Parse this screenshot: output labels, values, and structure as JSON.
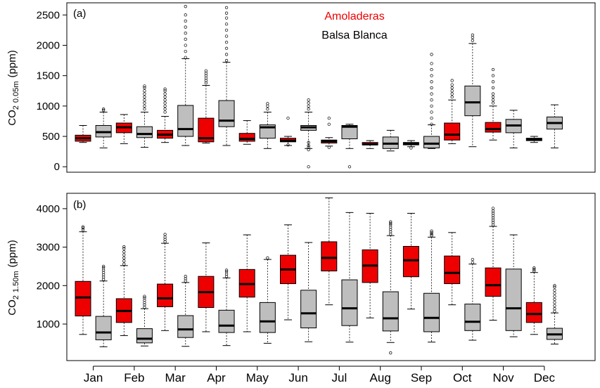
{
  "colors": {
    "amoladeras": "#ee0000",
    "balsa_blanca": "#bebebe",
    "axis": "#000000"
  },
  "legend": {
    "amoladeras": "Amoladeras",
    "balsa_blanca": "Balsa Blanca"
  },
  "chart_data": [
    {
      "type": "boxplot",
      "panel_label": "(a)",
      "ylabel": {
        "main": "CO",
        "sub2": "2",
        "depth": "0.05m",
        "unit": "(ppm)"
      },
      "ylim": [
        -90,
        2700
      ],
      "yticks": [
        0,
        500,
        1000,
        1500,
        2000,
        2500
      ],
      "categories": [
        "Jan",
        "Feb",
        "Mar",
        "Apr",
        "May",
        "Jun",
        "Jul",
        "Aug",
        "Sep",
        "Oct",
        "Nov",
        "Dec"
      ],
      "legend_position": "top-center",
      "series": [
        {
          "name": "Amoladeras",
          "boxes": [
            {
              "month": "Jan",
              "min": 400,
              "q1": 420,
              "median": 470,
              "q3": 520,
              "max": 680,
              "outliers": []
            },
            {
              "month": "Feb",
              "min": 380,
              "q1": 560,
              "median": 650,
              "q3": 720,
              "max": 860,
              "outliers": []
            },
            {
              "month": "Mar",
              "min": 400,
              "q1": 470,
              "median": 530,
              "q3": 600,
              "max": 830,
              "outliers": [
                900,
                950,
                1000,
                1050,
                1100,
                1150,
                1200,
                1250,
                1280
              ]
            },
            {
              "month": "Apr",
              "min": 390,
              "q1": 410,
              "median": 470,
              "q3": 800,
              "max": 1340,
              "outliers": [
                1380,
                1420,
                1460,
                1500,
                1540,
                1580
              ]
            },
            {
              "month": "May",
              "min": 370,
              "q1": 420,
              "median": 460,
              "q3": 550,
              "max": 760,
              "outliers": []
            },
            {
              "month": "Jun",
              "min": 350,
              "q1": 410,
              "median": 430,
              "q3": 470,
              "max": 500,
              "outliers": [
                360,
                800
              ]
            },
            {
              "month": "Jul",
              "min": 340,
              "q1": 390,
              "median": 420,
              "q3": 440,
              "max": 480,
              "outliers": [
                320,
                700,
                800
              ]
            },
            {
              "month": "Aug",
              "min": 300,
              "q1": 360,
              "median": 370,
              "q3": 400,
              "max": 430,
              "outliers": []
            },
            {
              "month": "Sep",
              "min": 330,
              "q1": 360,
              "median": 380,
              "q3": 400,
              "max": 430,
              "outliers": [
                310
              ]
            },
            {
              "month": "Oct",
              "min": 380,
              "q1": 440,
              "median": 530,
              "q3": 720,
              "max": 1100,
              "outliers": [
                1150,
                1200,
                1250,
                1300,
                1350,
                1420
              ]
            },
            {
              "month": "Nov",
              "min": 440,
              "q1": 570,
              "median": 620,
              "q3": 730,
              "max": 1000,
              "outliers": [
                1050,
                1100,
                1150,
                1200,
                1300,
                1400,
                1500,
                1600
              ]
            },
            {
              "month": "Dec",
              "min": 400,
              "q1": 430,
              "median": 450,
              "q3": 470,
              "max": 500,
              "outliers": []
            }
          ]
        },
        {
          "name": "Balsa Blanca",
          "boxes": [
            {
              "month": "Jan",
              "min": 310,
              "q1": 490,
              "median": 570,
              "q3": 680,
              "max": 900,
              "outliers": [
                930,
                950
              ]
            },
            {
              "month": "Feb",
              "min": 320,
              "q1": 480,
              "median": 540,
              "q3": 660,
              "max": 900,
              "outliers": [
                950,
                1000,
                1050,
                1100,
                1150,
                1200,
                1250,
                1300,
                1330
              ]
            },
            {
              "month": "Mar",
              "min": 350,
              "q1": 500,
              "median": 620,
              "q3": 1010,
              "max": 1780,
              "outliers": [
                1800,
                1900,
                2000,
                2100,
                2200,
                2300,
                2400,
                2500,
                2640
              ]
            },
            {
              "month": "Apr",
              "min": 350,
              "q1": 660,
              "median": 760,
              "q3": 1090,
              "max": 1720,
              "outliers": [
                1750,
                1850,
                1950,
                2050,
                2150,
                2250,
                2350,
                2450,
                2530,
                2620
              ]
            },
            {
              "month": "May",
              "min": 300,
              "q1": 470,
              "median": 650,
              "q3": 690,
              "max": 900,
              "outliers": [
                950,
                1000,
                1040
              ]
            },
            {
              "month": "Jun",
              "min": 300,
              "q1": 600,
              "median": 650,
              "q3": 680,
              "max": 900,
              "outliers": [
                280,
                320,
                350,
                400,
                950,
                1000,
                1050,
                1100,
                0
              ]
            },
            {
              "month": "Jul",
              "min": 300,
              "q1": 460,
              "median": 660,
              "q3": 680,
              "max": 700,
              "outliers": [
                0
              ]
            },
            {
              "month": "Aug",
              "min": 260,
              "q1": 300,
              "median": 380,
              "q3": 490,
              "max": 600,
              "outliers": []
            },
            {
              "month": "Sep",
              "min": 300,
              "q1": 310,
              "median": 380,
              "q3": 500,
              "max": 690,
              "outliers": [
                700,
                800,
                900,
                1000,
                1100,
                1200,
                1300,
                1400,
                1500,
                1600,
                1700,
                1850
              ]
            },
            {
              "month": "Oct",
              "min": 330,
              "q1": 840,
              "median": 1060,
              "q3": 1330,
              "max": 2030,
              "outliers": [
                2080,
                2130,
                2170
              ]
            },
            {
              "month": "Nov",
              "min": 310,
              "q1": 560,
              "median": 680,
              "q3": 780,
              "max": 930,
              "outliers": []
            },
            {
              "month": "Dec",
              "min": 310,
              "q1": 620,
              "median": 720,
              "q3": 820,
              "max": 1020,
              "outliers": []
            }
          ]
        }
      ]
    },
    {
      "type": "boxplot",
      "panel_label": "(b)",
      "ylabel": {
        "main": "CO",
        "sub2": "2",
        "depth": "1.50m",
        "unit": "(ppm)"
      },
      "ylim": [
        50,
        4400
      ],
      "yticks": [
        1000,
        2000,
        3000,
        4000
      ],
      "categories": [
        "Jan",
        "Feb",
        "Mar",
        "Apr",
        "May",
        "Jun",
        "Jul",
        "Aug",
        "Sep",
        "Oct",
        "Nov",
        "Dec"
      ],
      "series": [
        {
          "name": "Amoladeras",
          "boxes": [
            {
              "month": "Jan",
              "min": 730,
              "q1": 1210,
              "median": 1690,
              "q3": 2110,
              "max": 3400,
              "outliers": [
                3450,
                3500,
                3530
              ]
            },
            {
              "month": "Feb",
              "min": 700,
              "q1": 1040,
              "median": 1340,
              "q3": 1660,
              "max": 2520,
              "outliers": [
                2560,
                2640,
                2720,
                2800,
                2880,
                2960,
                3010
              ]
            },
            {
              "month": "Mar",
              "min": 830,
              "q1": 1450,
              "median": 1670,
              "q3": 2040,
              "max": 3100,
              "outliers": [
                3140,
                3200,
                3260,
                3330
              ]
            },
            {
              "month": "Apr",
              "min": 800,
              "q1": 1430,
              "median": 1830,
              "q3": 2240,
              "max": 3110,
              "outliers": []
            },
            {
              "month": "May",
              "min": 800,
              "q1": 1700,
              "median": 2040,
              "q3": 2420,
              "max": 3320,
              "outliers": []
            },
            {
              "month": "Jun",
              "min": 1110,
              "q1": 2050,
              "median": 2420,
              "q3": 2790,
              "max": 3580,
              "outliers": []
            },
            {
              "month": "Jul",
              "min": 1500,
              "q1": 2380,
              "median": 2720,
              "q3": 3140,
              "max": 4280,
              "outliers": []
            },
            {
              "month": "Aug",
              "min": 1160,
              "q1": 2080,
              "median": 2520,
              "q3": 2930,
              "max": 3880,
              "outliers": []
            },
            {
              "month": "Sep",
              "min": 1390,
              "q1": 2230,
              "median": 2660,
              "q3": 3020,
              "max": 3880,
              "outliers": []
            },
            {
              "month": "Oct",
              "min": 1500,
              "q1": 2050,
              "median": 2330,
              "q3": 2770,
              "max": 3380,
              "outliers": []
            },
            {
              "month": "Nov",
              "min": 1100,
              "q1": 1720,
              "median": 2010,
              "q3": 2460,
              "max": 3540,
              "outliers": [
                3580,
                3640,
                3700,
                3760,
                3820,
                3880,
                3940,
                4010
              ]
            },
            {
              "month": "Dec",
              "min": 730,
              "q1": 1040,
              "median": 1260,
              "q3": 1560,
              "max": 2340,
              "outliers": [
                2380,
                2420,
                2460
              ]
            }
          ]
        },
        {
          "name": "Balsa Blanca",
          "boxes": [
            {
              "month": "Jan",
              "min": 410,
              "q1": 590,
              "median": 780,
              "q3": 1200,
              "max": 2120,
              "outliers": [
                2160,
                2220,
                2280,
                2340,
                2400,
                2460,
                2500
              ]
            },
            {
              "month": "Feb",
              "min": 430,
              "q1": 510,
              "median": 620,
              "q3": 880,
              "max": 1400,
              "outliers": [
                1440,
                1500,
                1560,
                1620,
                1680,
                1720
              ]
            },
            {
              "month": "Mar",
              "min": 420,
              "q1": 650,
              "median": 860,
              "q3": 1220,
              "max": 2080,
              "outliers": [
                2120,
                2180,
                2240
              ]
            },
            {
              "month": "Apr",
              "min": 440,
              "q1": 780,
              "median": 960,
              "q3": 1360,
              "max": 2200,
              "outliers": [
                2240,
                2300,
                2360,
                2400
              ]
            },
            {
              "month": "May",
              "min": 500,
              "q1": 780,
              "median": 1070,
              "q3": 1560,
              "max": 2680,
              "outliers": [
                2720
              ]
            },
            {
              "month": "Jun",
              "min": 540,
              "q1": 900,
              "median": 1280,
              "q3": 1880,
              "max": 3120,
              "outliers": []
            },
            {
              "month": "Jul",
              "min": 530,
              "q1": 960,
              "median": 1410,
              "q3": 2150,
              "max": 3900,
              "outliers": []
            },
            {
              "month": "Aug",
              "min": 520,
              "q1": 820,
              "median": 1150,
              "q3": 1840,
              "max": 3300,
              "outliers": [
                3340,
                3400,
                3460,
                3520,
                3580,
                3620,
                3660,
                250
              ]
            },
            {
              "month": "Sep",
              "min": 530,
              "q1": 800,
              "median": 1160,
              "q3": 1800,
              "max": 3260,
              "outliers": [
                3300,
                3340,
                3380,
                3420
              ]
            },
            {
              "month": "Oct",
              "min": 580,
              "q1": 830,
              "median": 1060,
              "q3": 1520,
              "max": 2560,
              "outliers": [
                2600,
                2680
              ]
            },
            {
              "month": "Nov",
              "min": 670,
              "q1": 830,
              "median": 1410,
              "q3": 2430,
              "max": 3320,
              "outliers": []
            },
            {
              "month": "Dec",
              "min": 480,
              "q1": 600,
              "median": 730,
              "q3": 890,
              "max": 1290,
              "outliers": [
                1330,
                1400,
                1480,
                1560,
                1640,
                1720,
                1800,
                1880,
                1960,
                2000
              ]
            }
          ]
        }
      ]
    }
  ]
}
